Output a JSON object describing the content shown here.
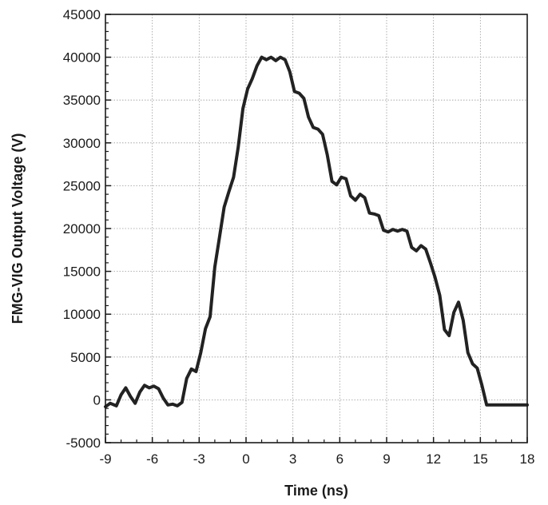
{
  "chart_data": {
    "type": "line",
    "xlabel": "Time (ns)",
    "ylabel": "FMG-VIG Output  Voltage (V)",
    "xlim": [
      -9,
      18
    ],
    "ylim": [
      -5000,
      45000
    ],
    "xticks": [
      -9,
      -6,
      -3,
      0,
      3,
      6,
      9,
      12,
      15,
      18
    ],
    "yticks": [
      -5000,
      0,
      5000,
      10000,
      15000,
      20000,
      25000,
      30000,
      35000,
      40000,
      45000
    ],
    "grid": true,
    "line_color": "#222222",
    "series": [
      {
        "x": [
          -9,
          -8.7,
          -8.3,
          -8,
          -7.7,
          -7.4,
          -7.1,
          -6.8,
          -6.5,
          -6.2,
          -5.9,
          -5.6,
          -5.3,
          -5.0,
          -4.7,
          -4.4,
          -4.1,
          -3.8,
          -3.5,
          -3.2,
          -2.9,
          -2.6,
          -2.3,
          -2.0,
          -1.7,
          -1.4,
          -1.1,
          -0.8,
          -0.5,
          -0.2,
          0.1,
          0.4,
          0.7,
          1.0,
          1.3,
          1.6,
          1.9,
          2.2,
          2.5,
          2.8,
          3.1,
          3.4,
          3.7,
          4.0,
          4.3,
          4.6,
          4.9,
          5.2,
          5.5,
          5.8,
          6.1,
          6.4,
          6.7,
          7.0,
          7.3,
          7.6,
          7.9,
          8.2,
          8.5,
          8.8,
          9.1,
          9.4,
          9.7,
          10.0,
          10.3,
          10.6,
          10.9,
          11.2,
          11.5,
          11.8,
          12.1,
          12.4,
          12.7,
          13.0,
          13.3,
          13.6,
          13.9,
          14.2,
          14.5,
          14.8,
          15.1,
          15.4,
          15.7,
          16.0,
          16.3,
          16.6,
          16.9,
          17.2,
          17.5,
          17.8,
          18.0
        ],
        "y": [
          -800,
          -400,
          -700,
          600,
          1400,
          400,
          -400,
          900,
          1700,
          1400,
          1600,
          1300,
          200,
          -600,
          -500,
          -700,
          -300,
          2500,
          3600,
          3300,
          5500,
          8300,
          9700,
          15500,
          19000,
          22500,
          24300,
          26000,
          29500,
          34000,
          36300,
          37500,
          39000,
          40000,
          39700,
          40000,
          39600,
          40000,
          39700,
          38300,
          36000,
          35800,
          35200,
          33000,
          31800,
          31600,
          31000,
          28600,
          25500,
          25100,
          26000,
          25800,
          23800,
          23300,
          24000,
          23600,
          21800,
          21700,
          21500,
          19800,
          19600,
          19900,
          19700,
          19900,
          19700,
          17800,
          17400,
          18000,
          17600,
          16000,
          14300,
          12200,
          8200,
          7500,
          10200,
          11400,
          9300,
          5500,
          4200,
          3700,
          1700,
          -600,
          -600,
          -600,
          -600,
          -600,
          -600,
          -600,
          -600,
          -600,
          -600
        ]
      }
    ]
  }
}
